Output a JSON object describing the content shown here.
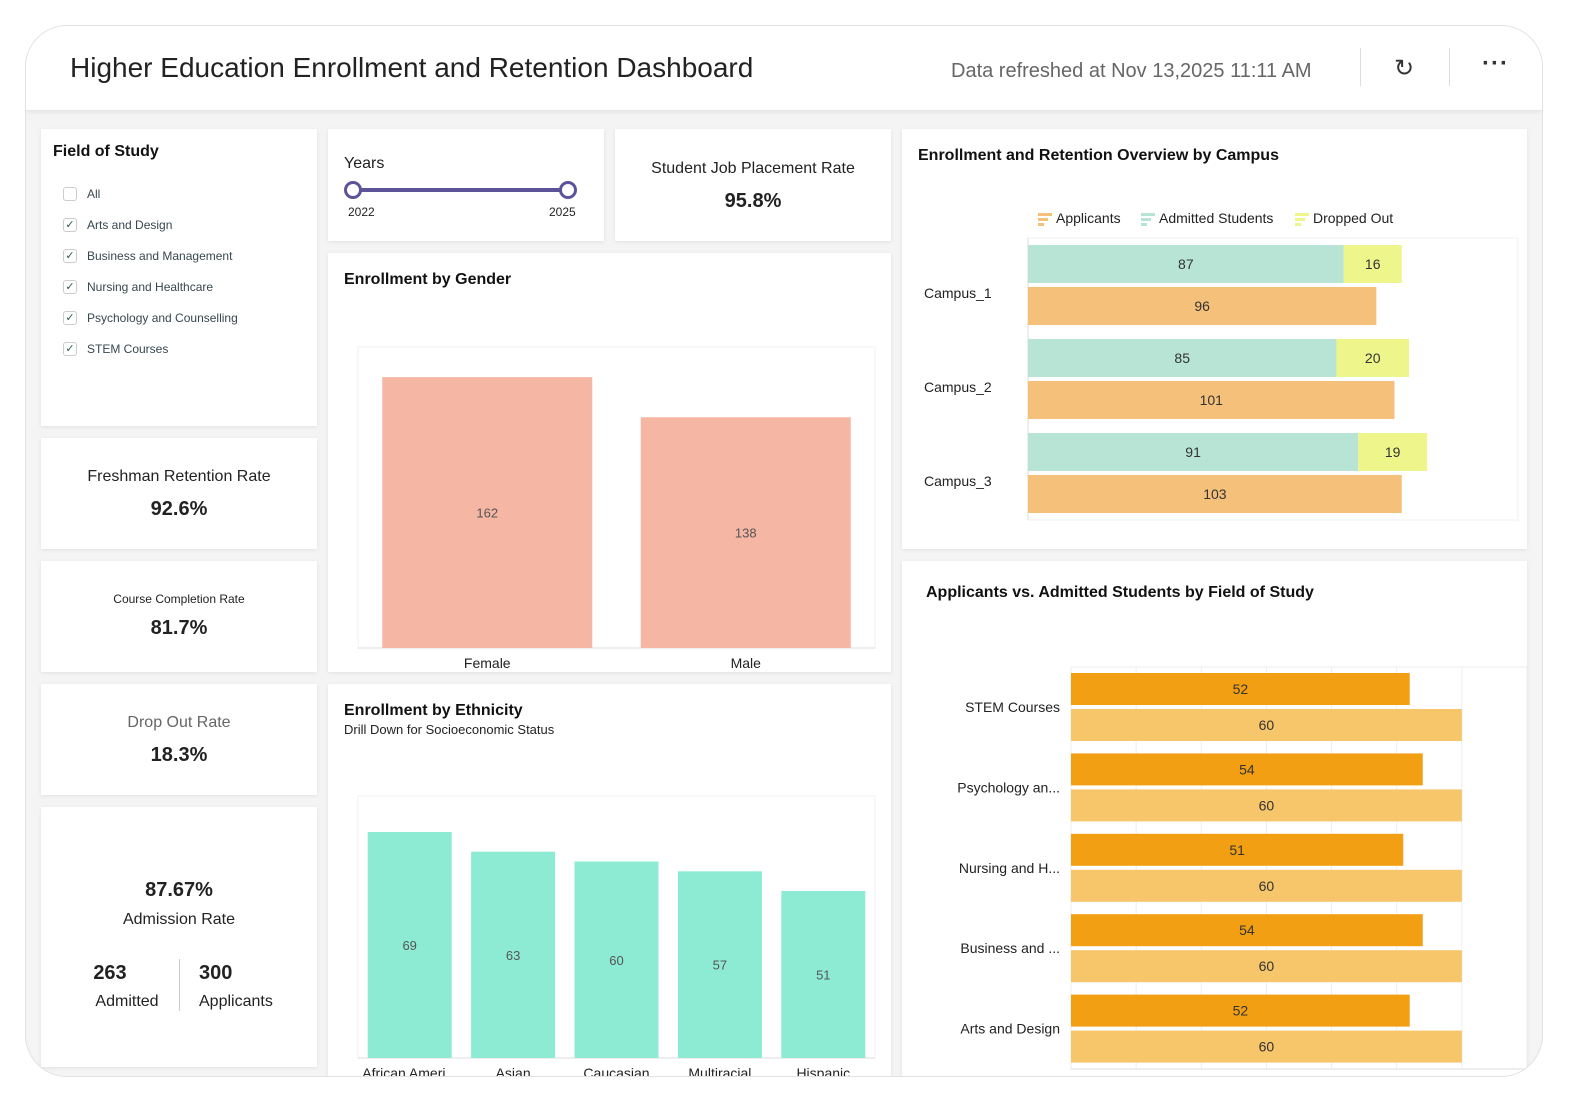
{
  "header": {
    "title": "Higher Education Enrollment and Retention Dashboard",
    "refreshed": "Data refreshed at Nov 13,2025 11:11 AM",
    "refresh_icon": "refresh-icon",
    "more_icon": "more-icon"
  },
  "field_filter": {
    "title": "Field of Study",
    "items": [
      {
        "label": "All",
        "checked": false
      },
      {
        "label": "Arts and Design",
        "checked": true
      },
      {
        "label": "Business and Management",
        "checked": true
      },
      {
        "label": "Nursing and Healthcare",
        "checked": true
      },
      {
        "label": "Psychology and Counselling",
        "checked": true
      },
      {
        "label": "STEM Courses",
        "checked": true
      }
    ]
  },
  "years": {
    "title": "Years",
    "min": "2022",
    "max": "2025",
    "accent": "#5c5499"
  },
  "kpis": {
    "job_placement": {
      "label": "Student Job Placement Rate",
      "value": "95.8%"
    },
    "freshman": {
      "label": "Freshman Retention Rate",
      "value": "92.6%"
    },
    "completion": {
      "label": "Course Completion Rate",
      "value": "81.7%"
    },
    "dropout": {
      "label": "Drop Out Rate",
      "value": "18.3%"
    }
  },
  "admission": {
    "rate": "87.67%",
    "label": "Admission Rate",
    "admitted": "263",
    "admitted_label": "Admitted",
    "applicants": "300",
    "applicants_label": "Applicants"
  },
  "chart_data": [
    {
      "id": "gender",
      "type": "bar",
      "title": "Enrollment by Gender",
      "categories": [
        "Female",
        "Male"
      ],
      "values": [
        162,
        138
      ],
      "ylim": [
        0,
        180
      ],
      "color": "#f5b7a4"
    },
    {
      "id": "ethnicity",
      "type": "bar",
      "title": "Enrollment by Ethnicity",
      "subtitle": "Drill Down for Socioeconomic Status",
      "categories": [
        "African Ameri...",
        "Asian",
        "Caucasian",
        "Multiracial",
        "Hispanic"
      ],
      "values": [
        69,
        63,
        60,
        57,
        51
      ],
      "ylim": [
        0,
        80
      ],
      "color": "#8eebd3"
    },
    {
      "id": "campus",
      "type": "bar",
      "orientation": "horizontal",
      "title": "Enrollment and Retention Overview by Campus",
      "legend": [
        "Applicants",
        "Admitted Students",
        "Dropped Out"
      ],
      "legend_position": "top",
      "categories": [
        "Campus_1",
        "Campus_2",
        "Campus_3"
      ],
      "series": [
        {
          "name": "Applicants",
          "values": [
            96,
            101,
            103
          ],
          "color": "#f5c07a"
        },
        {
          "name": "Admitted Students",
          "values": [
            87,
            85,
            91
          ],
          "color": "#b8e4d6",
          "stack": "a"
        },
        {
          "name": "Dropped Out",
          "values": [
            16,
            20,
            19
          ],
          "color": "#eef58a",
          "stack": "a"
        }
      ],
      "xlim": [
        0,
        140
      ]
    },
    {
      "id": "field",
      "type": "bar",
      "orientation": "horizontal",
      "title": "Applicants vs. Admitted Students by Field of Study",
      "categories": [
        "STEM Courses",
        "Psychology an...",
        "Nursing and H...",
        "Business and ...",
        "Arts and Design"
      ],
      "series": [
        {
          "values": [
            52,
            54,
            51,
            54,
            52
          ],
          "color": "#f29f14"
        },
        {
          "values": [
            60,
            60,
            60,
            60,
            60
          ],
          "color": "#f7c56a"
        }
      ],
      "xlim": [
        0,
        70
      ],
      "grid": true
    }
  ]
}
